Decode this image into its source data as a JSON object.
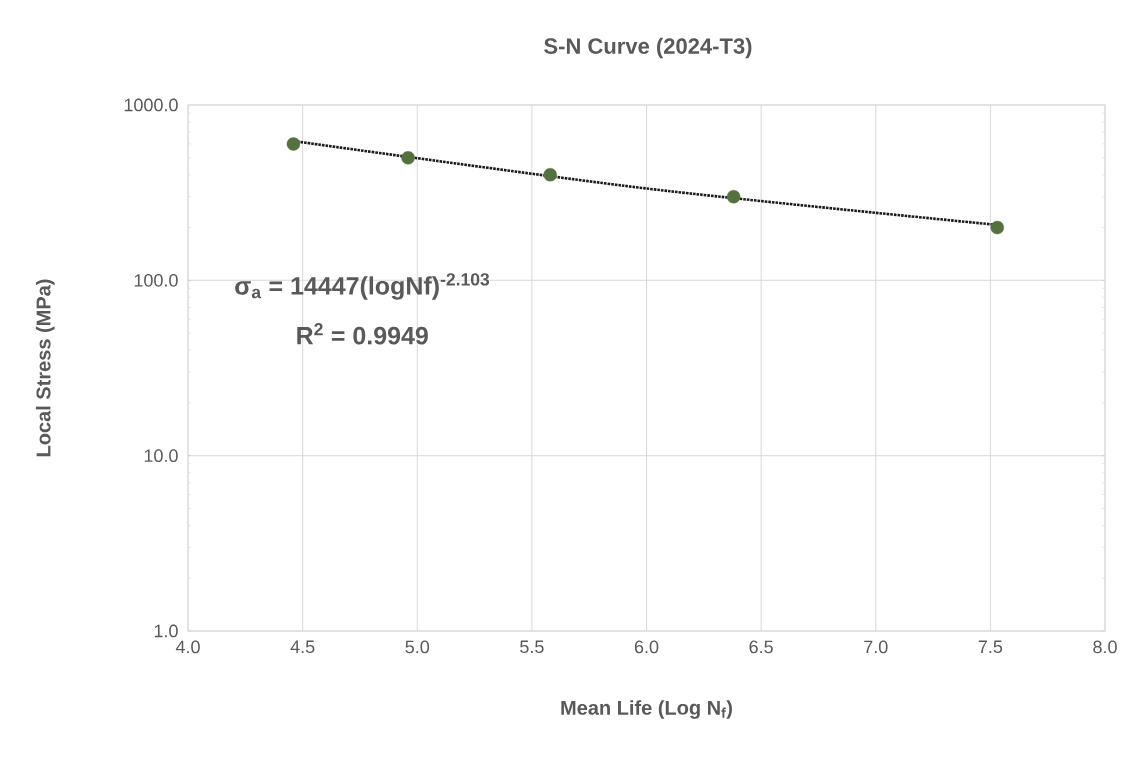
{
  "chart_data": {
    "type": "scatter",
    "title": "S-N Curve (2024-T3)",
    "xlabel": "Mean Life (Log N$_{f}$)",
    "ylabel": "Local Stress (MPa)",
    "series": [
      {
        "marker": "circle",
        "color": "#56703f",
        "x": [
          4.46,
          4.96,
          5.58,
          6.38,
          7.53
        ],
        "values": [
          600,
          500,
          400,
          300,
          200
        ]
      },
      {
        "type": "line",
        "color": "#1a1a1a",
        "line_style": "dotted",
        "x": [
          4.46,
          6.0,
          7.53
        ],
        "values": [
          623,
          334,
          207
        ]
      }
    ],
    "log": "y",
    "grid": true,
    "xlim": [
      4.0,
      8.0
    ],
    "ylim": [
      1,
      1000
    ],
    "xticks": [
      {
        "value": 4.0,
        "label": "4.0"
      },
      {
        "value": 4.5,
        "label": "4.5"
      },
      {
        "value": 5.0,
        "label": "5.0"
      },
      {
        "value": 5.5,
        "label": "5.5"
      },
      {
        "value": 6.0,
        "label": "6.0"
      },
      {
        "value": 6.5,
        "label": "6.5"
      },
      {
        "value": 7.0,
        "label": "7.0"
      },
      {
        "value": 7.5,
        "label": "7.5"
      },
      {
        "value": 8.0,
        "label": "8.0"
      }
    ],
    "yticks": [
      {
        "value": 1,
        "label": "1.0"
      },
      {
        "value": 10,
        "label": "10.0"
      },
      {
        "value": 100,
        "label": "100.0"
      },
      {
        "value": 1000,
        "label": "1000.0"
      }
    ],
    "annotations": [
      "σ$_{a}$ = 14447(logNf)$^{-2.103}$",
      "R$^{2}$ = 0.9949"
    ]
  }
}
